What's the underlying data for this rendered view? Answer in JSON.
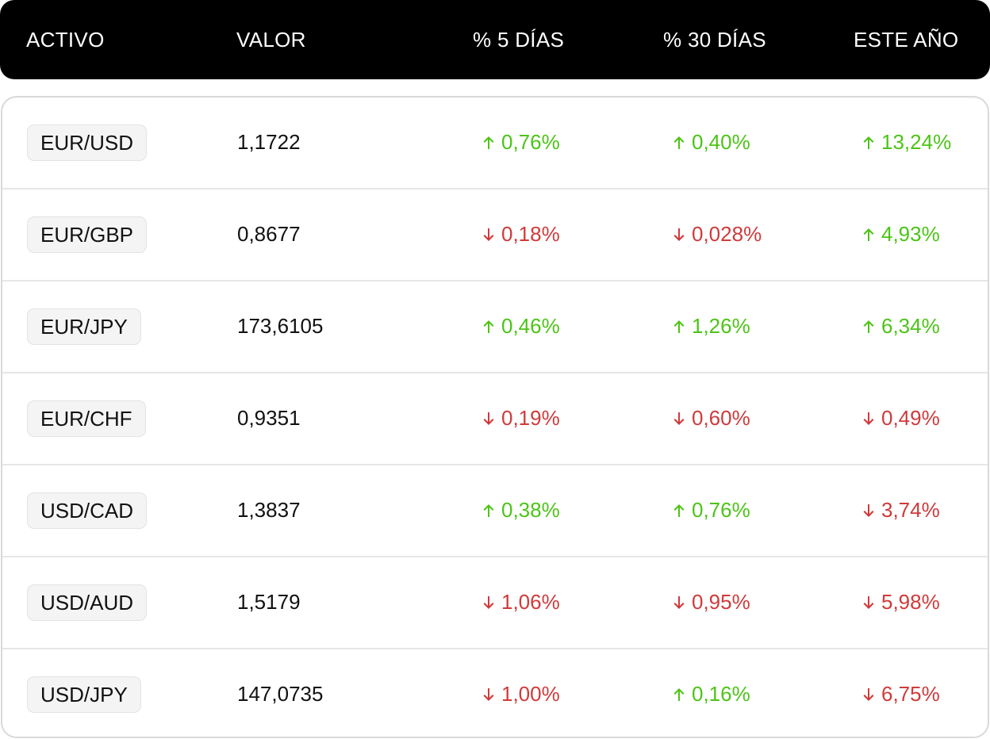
{
  "header": {
    "activo": "ACTIVO",
    "valor": "VALOR",
    "pct5": "% 5 DÍAS",
    "pct30": "% 30 DÍAS",
    "year": "ESTE AÑO"
  },
  "colors": {
    "header_bg": "#000000",
    "up": "#4cc417",
    "down": "#d03a3a"
  },
  "rows": [
    {
      "asset": "EUR/USD",
      "value": "1,1722",
      "d5": {
        "dir": "up",
        "text": "0,76%"
      },
      "d30": {
        "dir": "up",
        "text": "0,40%"
      },
      "ytd": {
        "dir": "up",
        "text": "13,24%"
      }
    },
    {
      "asset": "EUR/GBP",
      "value": "0,8677",
      "d5": {
        "dir": "down",
        "text": "0,18%"
      },
      "d30": {
        "dir": "down",
        "text": "0,028%"
      },
      "ytd": {
        "dir": "up",
        "text": "4,93%"
      }
    },
    {
      "asset": "EUR/JPY",
      "value": "173,6105",
      "d5": {
        "dir": "up",
        "text": "0,46%"
      },
      "d30": {
        "dir": "up",
        "text": "1,26%"
      },
      "ytd": {
        "dir": "up",
        "text": "6,34%"
      }
    },
    {
      "asset": "EUR/CHF",
      "value": "0,9351",
      "d5": {
        "dir": "down",
        "text": "0,19%"
      },
      "d30": {
        "dir": "down",
        "text": "0,60%"
      },
      "ytd": {
        "dir": "down",
        "text": "0,49%"
      }
    },
    {
      "asset": "USD/CAD",
      "value": "1,3837",
      "d5": {
        "dir": "up",
        "text": "0,38%"
      },
      "d30": {
        "dir": "up",
        "text": "0,76%"
      },
      "ytd": {
        "dir": "down",
        "text": "3,74%"
      }
    },
    {
      "asset": "USD/AUD",
      "value": "1,5179",
      "d5": {
        "dir": "down",
        "text": "1,06%"
      },
      "d30": {
        "dir": "down",
        "text": "0,95%"
      },
      "ytd": {
        "dir": "down",
        "text": "5,98%"
      }
    },
    {
      "asset": "USD/JPY",
      "value": "147,0735",
      "d5": {
        "dir": "down",
        "text": "1,00%"
      },
      "d30": {
        "dir": "up",
        "text": "0,16%"
      },
      "ytd": {
        "dir": "down",
        "text": "6,75%"
      }
    }
  ]
}
